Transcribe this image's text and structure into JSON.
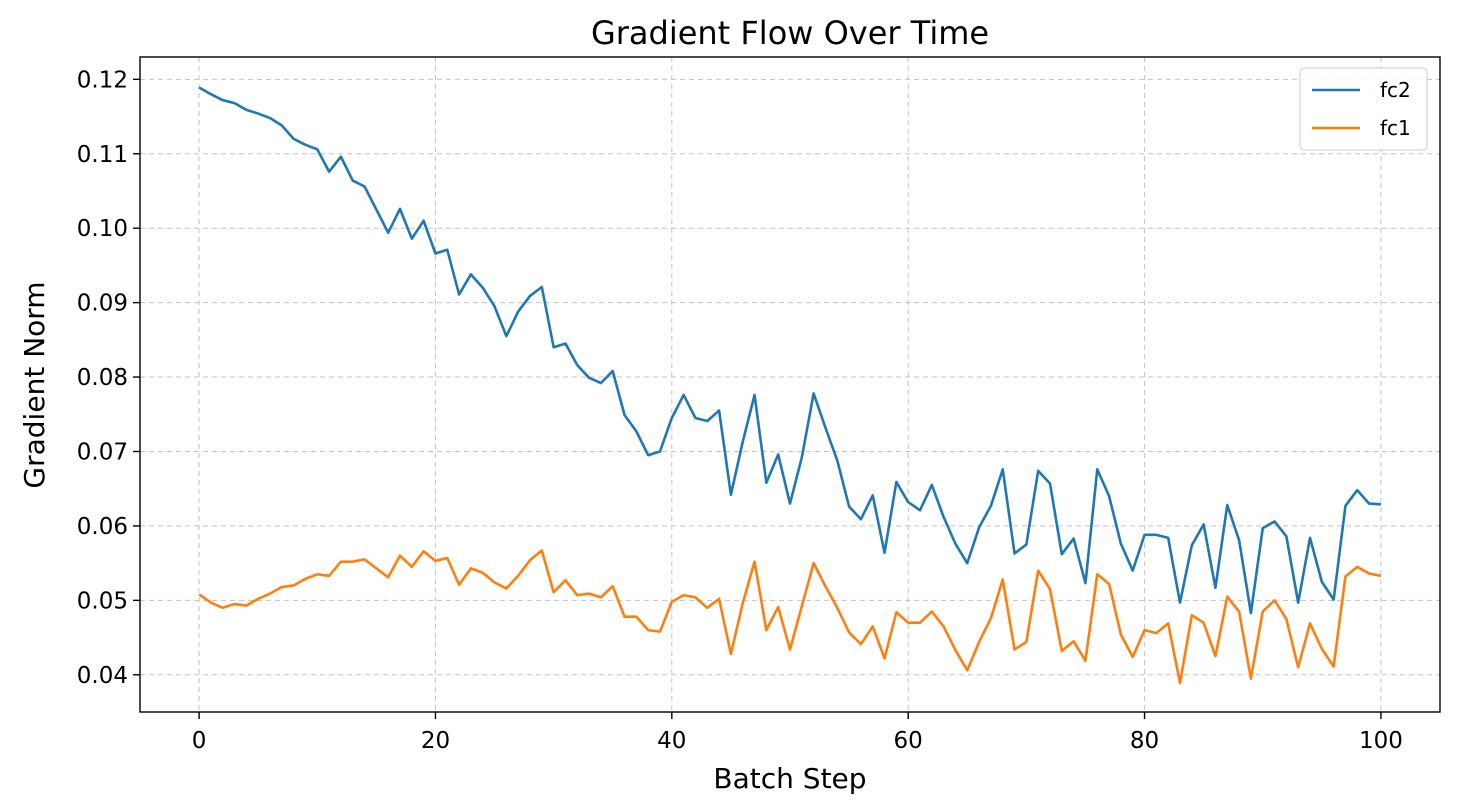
{
  "chart_data": {
    "type": "line",
    "title": "Gradient Flow Over Time",
    "xlabel": "Batch Step",
    "ylabel": "Gradient Norm",
    "xlim": [
      -5,
      105
    ],
    "ylim": [
      0.035,
      0.123
    ],
    "xticks": [
      0,
      20,
      40,
      60,
      80,
      100
    ],
    "yticks": [
      0.04,
      0.05,
      0.06,
      0.07,
      0.08,
      0.09,
      0.1,
      0.11,
      0.12
    ],
    "ytick_labels": [
      "0.04",
      "0.05",
      "0.06",
      "0.07",
      "0.08",
      "0.09",
      "0.10",
      "0.11",
      "0.12"
    ],
    "grid": true,
    "legend_position": "top-right",
    "series": [
      {
        "name": "fc2",
        "color": "#1f77b4",
        "values": [
          0.1189,
          0.118,
          0.1172,
          0.1168,
          0.1159,
          0.1154,
          0.1148,
          0.1138,
          0.112,
          0.1112,
          0.1106,
          0.1076,
          0.1096,
          0.1064,
          0.1056,
          0.1025,
          0.0994,
          0.1026,
          0.0986,
          0.101,
          0.0966,
          0.0971,
          0.0911,
          0.0938,
          0.092,
          0.0895,
          0.0855,
          0.0888,
          0.0909,
          0.0921,
          0.084,
          0.0845,
          0.0816,
          0.0799,
          0.0792,
          0.0808,
          0.0749,
          0.0727,
          0.0695,
          0.07,
          0.0745,
          0.0776,
          0.0745,
          0.0741,
          0.0755,
          0.0642,
          0.0713,
          0.0776,
          0.0658,
          0.0696,
          0.063,
          0.0692,
          0.0778,
          0.0732,
          0.0688,
          0.0626,
          0.0609,
          0.0641,
          0.0564,
          0.0659,
          0.0632,
          0.0621,
          0.0655,
          0.0612,
          0.0576,
          0.055,
          0.0598,
          0.0627,
          0.0676,
          0.0563,
          0.0575,
          0.0674,
          0.0657,
          0.0562,
          0.0583,
          0.0523,
          0.0676,
          0.064,
          0.0576,
          0.054,
          0.0588,
          0.0588,
          0.0584,
          0.0497,
          0.0574,
          0.0602,
          0.0517,
          0.0628,
          0.0581,
          0.0483,
          0.0597,
          0.0606,
          0.0586,
          0.0497,
          0.0584,
          0.0525,
          0.0501,
          0.0627,
          0.0648,
          0.063,
          0.0629
        ]
      },
      {
        "name": "fc1",
        "color": "#ff7f0e",
        "values": [
          0.0508,
          0.0497,
          0.049,
          0.0495,
          0.0493,
          0.0502,
          0.0509,
          0.0518,
          0.052,
          0.0529,
          0.0535,
          0.0533,
          0.0552,
          0.0552,
          0.0555,
          0.0543,
          0.0531,
          0.056,
          0.0545,
          0.0566,
          0.0553,
          0.0557,
          0.0521,
          0.0543,
          0.0537,
          0.0524,
          0.0516,
          0.0533,
          0.0554,
          0.0567,
          0.0511,
          0.0527,
          0.0507,
          0.0509,
          0.0504,
          0.0519,
          0.0478,
          0.0478,
          0.046,
          0.0458,
          0.0498,
          0.0507,
          0.0504,
          0.049,
          0.0502,
          0.0428,
          0.0496,
          0.0552,
          0.046,
          0.0491,
          0.0434,
          0.0492,
          0.055,
          0.0519,
          0.049,
          0.0457,
          0.0441,
          0.0465,
          0.0422,
          0.0484,
          0.047,
          0.047,
          0.0485,
          0.0465,
          0.0433,
          0.0406,
          0.0444,
          0.0476,
          0.0528,
          0.0434,
          0.0444,
          0.054,
          0.0515,
          0.0432,
          0.0445,
          0.0419,
          0.0535,
          0.0522,
          0.0454,
          0.0424,
          0.046,
          0.0456,
          0.0469,
          0.0389,
          0.048,
          0.047,
          0.0425,
          0.0505,
          0.0485,
          0.0395,
          0.0485,
          0.05,
          0.0475,
          0.041,
          0.0469,
          0.0435,
          0.0411,
          0.0532,
          0.0545,
          0.0536,
          0.0533
        ]
      }
    ]
  }
}
